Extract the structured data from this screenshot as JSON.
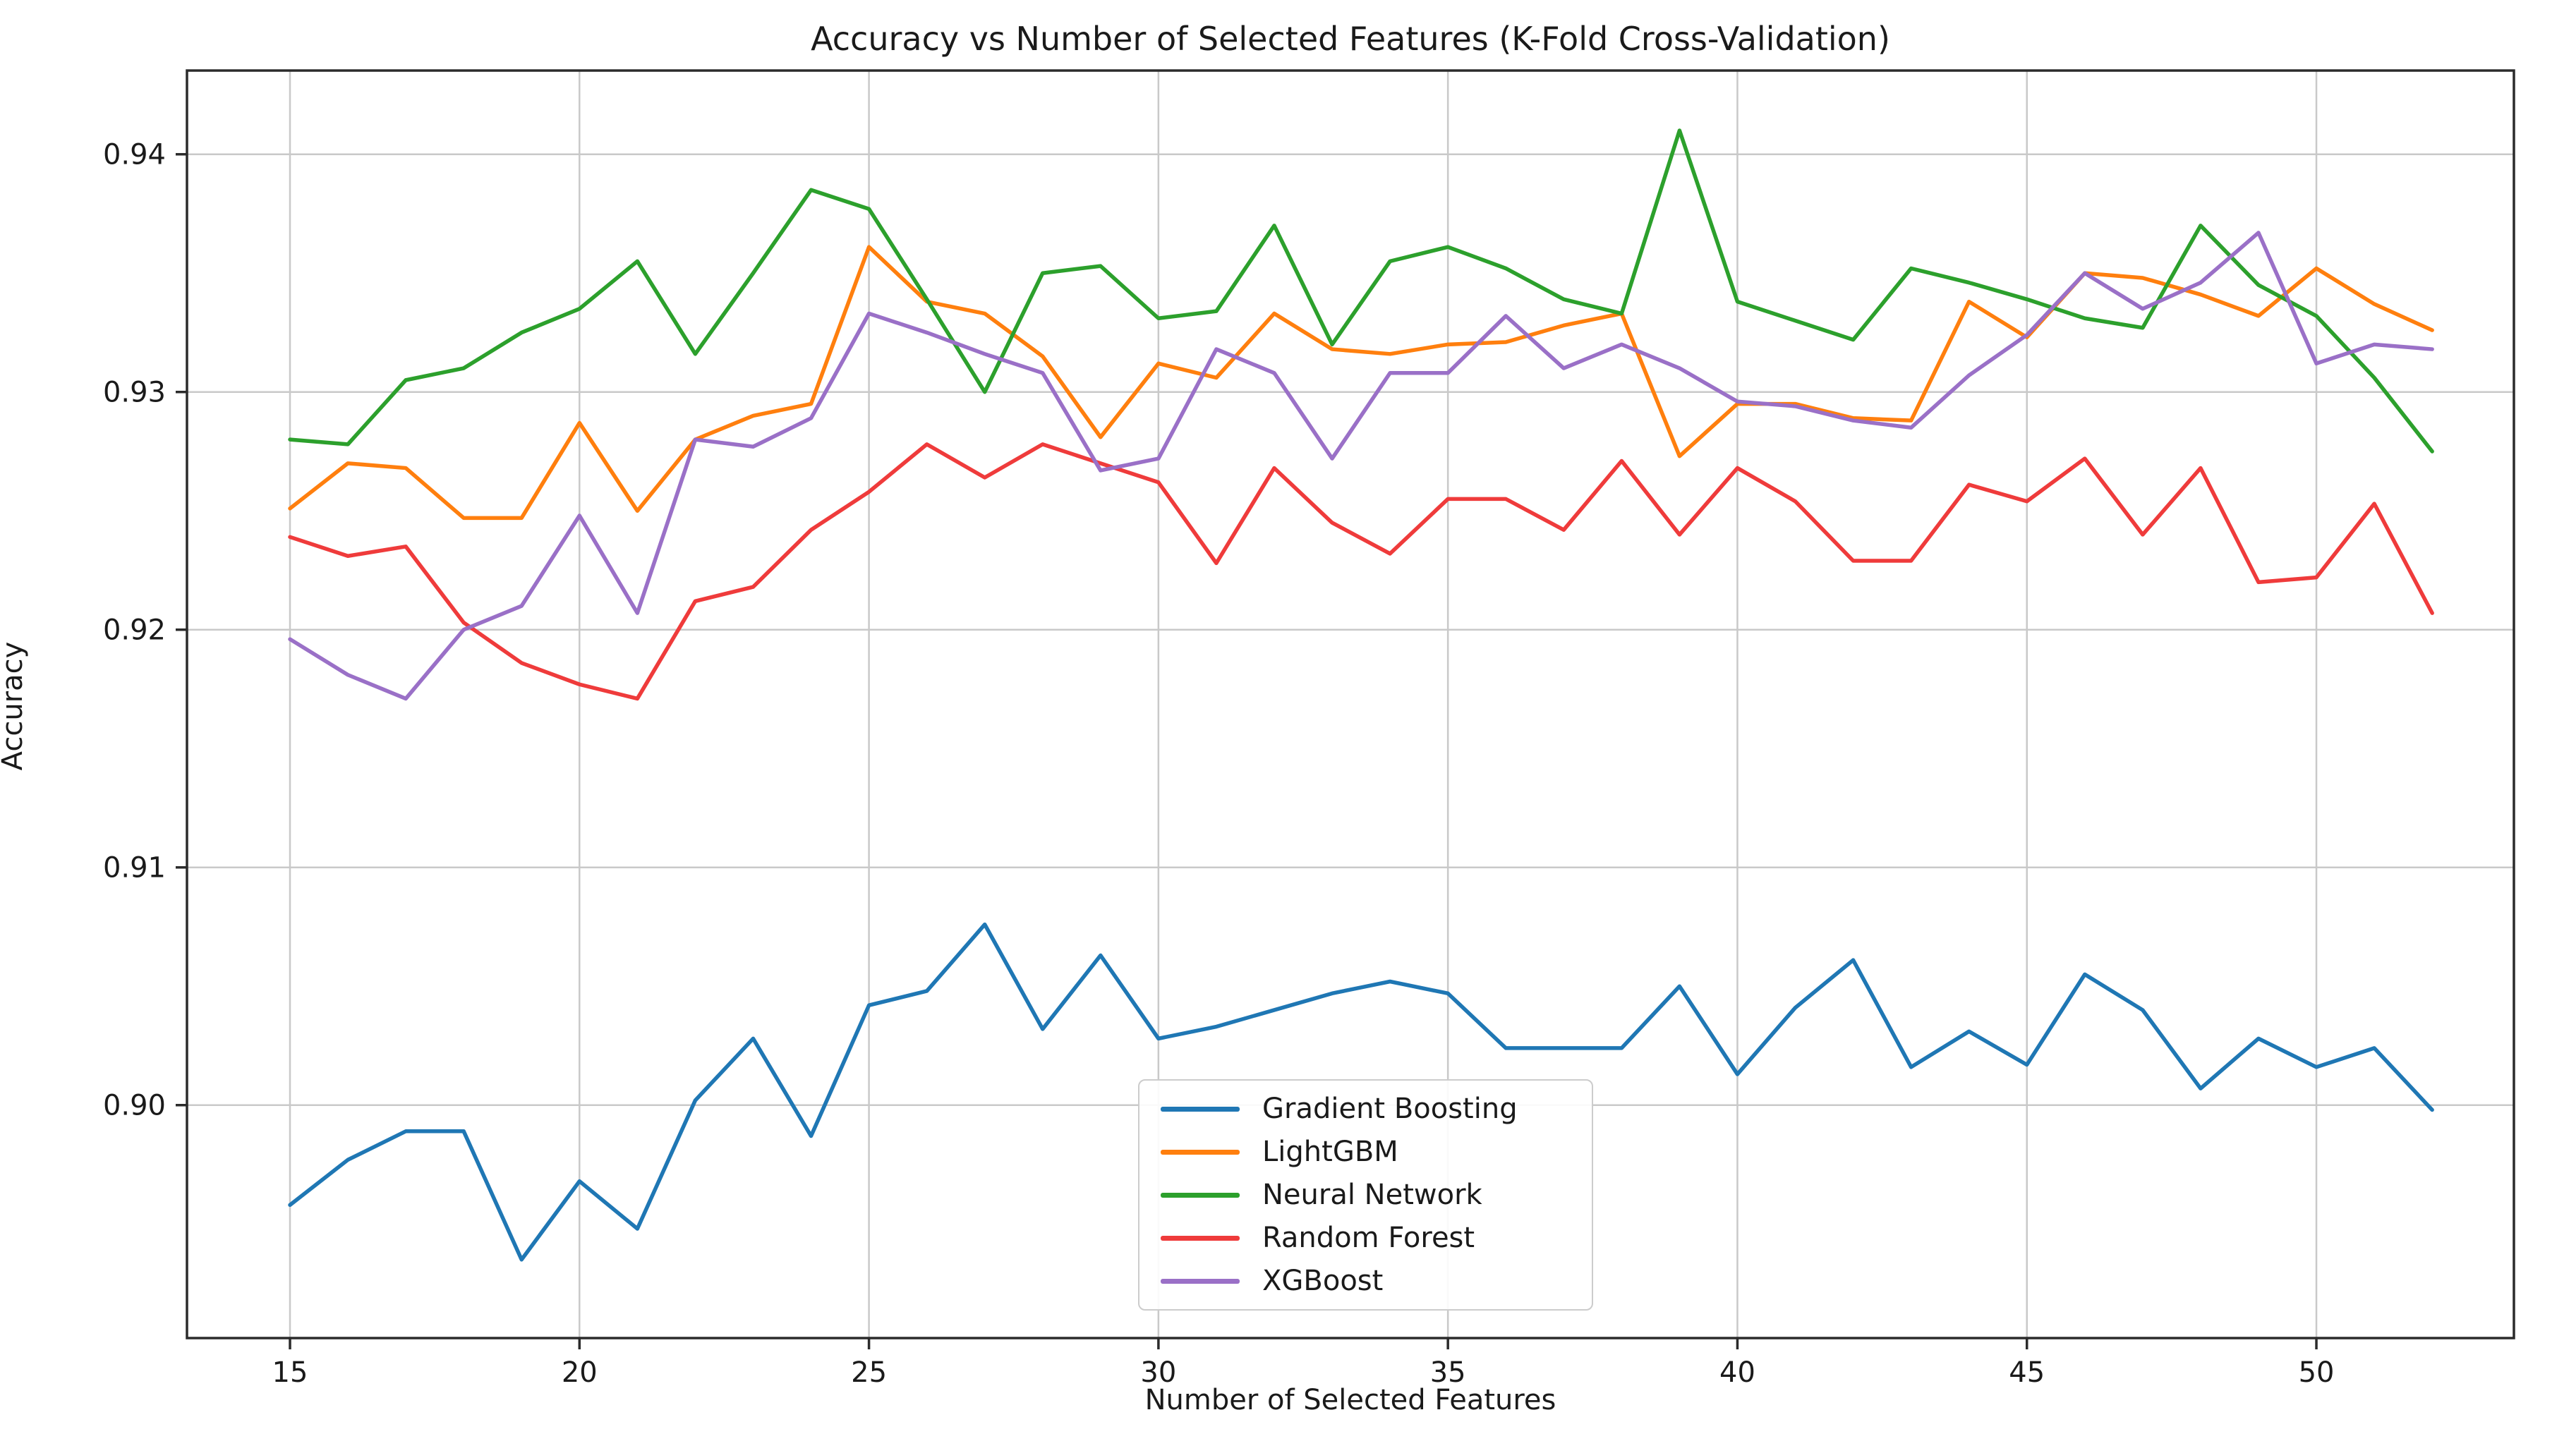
{
  "title": "Accuracy vs Number of Selected Features (K-Fold Cross-Validation)",
  "chart_data": {
    "type": "line",
    "title": "Accuracy vs Number of Selected Features (K-Fold Cross-Validation)",
    "xlabel": "Number of Selected Features",
    "ylabel": "Accuracy",
    "grid": true,
    "legend_position": "lower center",
    "xlim": [
      13.2207,
      53.4117
    ],
    "ylim": [
      0.8902,
      0.943523
    ],
    "x_ticks": [
      15,
      20,
      25,
      30,
      35,
      40,
      45,
      50
    ],
    "x_tick_labels": [
      "15",
      "20",
      "25",
      "30",
      "35",
      "40",
      "45",
      "50"
    ],
    "y_ticks": [
      0.9,
      0.91,
      0.92,
      0.93,
      0.94
    ],
    "y_tick_labels": [
      "0.90",
      "0.91",
      "0.92",
      "0.93",
      "0.94"
    ],
    "x": [
      15,
      16,
      17,
      18,
      19,
      20,
      21,
      22,
      23,
      24,
      25,
      26,
      27,
      28,
      29,
      30,
      31,
      32,
      33,
      34,
      35,
      36,
      37,
      38,
      39,
      40,
      41,
      42,
      43,
      44,
      45,
      46,
      47,
      48,
      49,
      50,
      51,
      52
    ],
    "series": [
      {
        "name": "Gradient Boosting",
        "color": "#1f77b4",
        "values": [
          0.8958,
          0.8977,
          0.8989,
          0.8989,
          0.8935,
          0.8968,
          0.8948,
          0.9002,
          0.9028,
          0.8987,
          0.9042,
          0.9048,
          0.9076,
          0.9032,
          0.9063,
          0.9028,
          0.9033,
          0.904,
          0.9047,
          0.9052,
          0.9047,
          0.9024,
          0.9024,
          0.9024,
          0.905,
          0.9013,
          0.9041,
          0.9061,
          0.9016,
          0.9031,
          0.9017,
          0.9055,
          0.904,
          0.9007,
          0.9028,
          0.9016,
          0.9024,
          0.8998
        ]
      },
      {
        "name": "LightGBM",
        "color": "#ff7f0e",
        "values": [
          0.9251,
          0.927,
          0.9268,
          0.9247,
          0.9247,
          0.9287,
          0.925,
          0.928,
          0.929,
          0.9295,
          0.9361,
          0.9338,
          0.9333,
          0.9315,
          0.9281,
          0.9312,
          0.9306,
          0.9333,
          0.9318,
          0.9316,
          0.932,
          0.9321,
          0.9328,
          0.9333,
          0.9273,
          0.9295,
          0.9295,
          0.9289,
          0.9288,
          0.9338,
          0.9323,
          0.935,
          0.9348,
          0.9341,
          0.9332,
          0.9352,
          0.9337,
          0.9326
        ]
      },
      {
        "name": "Neural Network",
        "color": "#2ca02c",
        "values": [
          0.928,
          0.9278,
          0.9305,
          0.931,
          0.9325,
          0.9335,
          0.9355,
          0.9316,
          0.935,
          0.9385,
          0.9377,
          0.9339,
          0.93,
          0.935,
          0.9353,
          0.9331,
          0.9334,
          0.937,
          0.932,
          0.9355,
          0.9361,
          0.9352,
          0.9339,
          0.9333,
          0.941,
          0.9338,
          0.933,
          0.9322,
          0.9352,
          0.9346,
          0.9339,
          0.9331,
          0.9327,
          0.937,
          0.9345,
          0.9332,
          0.9306,
          0.9275
        ]
      },
      {
        "name": "Random Forest",
        "color": "#ef3b3b",
        "values": [
          0.9239,
          0.9231,
          0.9235,
          0.9203,
          0.9186,
          0.9177,
          0.9171,
          0.9212,
          0.9218,
          0.9242,
          0.9258,
          0.9278,
          0.9264,
          0.9278,
          0.927,
          0.9262,
          0.9228,
          0.9268,
          0.9245,
          0.9232,
          0.9255,
          0.9255,
          0.9242,
          0.9271,
          0.924,
          0.9268,
          0.9254,
          0.9229,
          0.9229,
          0.9261,
          0.9254,
          0.9272,
          0.924,
          0.9268,
          0.922,
          0.9222,
          0.9253,
          0.9207
        ]
      },
      {
        "name": "XGBoost",
        "color": "#9a70c7",
        "values": [
          0.9196,
          0.9181,
          0.9171,
          0.92,
          0.921,
          0.9248,
          0.9207,
          0.928,
          0.9277,
          0.9289,
          0.9333,
          0.9325,
          0.9316,
          0.9308,
          0.9267,
          0.9272,
          0.9318,
          0.9308,
          0.9272,
          0.9308,
          0.9308,
          0.9332,
          0.931,
          0.932,
          0.931,
          0.9296,
          0.9294,
          0.9288,
          0.9285,
          0.9307,
          0.9324,
          0.935,
          0.9335,
          0.9346,
          0.9367,
          0.9312,
          0.932,
          0.9318
        ]
      }
    ]
  }
}
